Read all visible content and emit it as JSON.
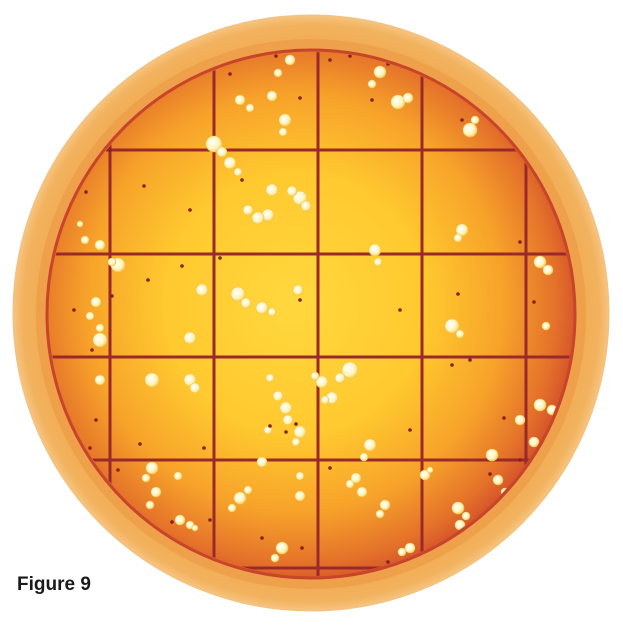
{
  "figure": {
    "label": "Figure 9"
  },
  "petri_dish": {
    "rim_color": "#f0a84a",
    "medium_edge_color": "#d8552a",
    "medium_center_color": "#ffd23a",
    "grid_line_color": "#9a2a2a",
    "colony_color": "#fff6c8"
  }
}
